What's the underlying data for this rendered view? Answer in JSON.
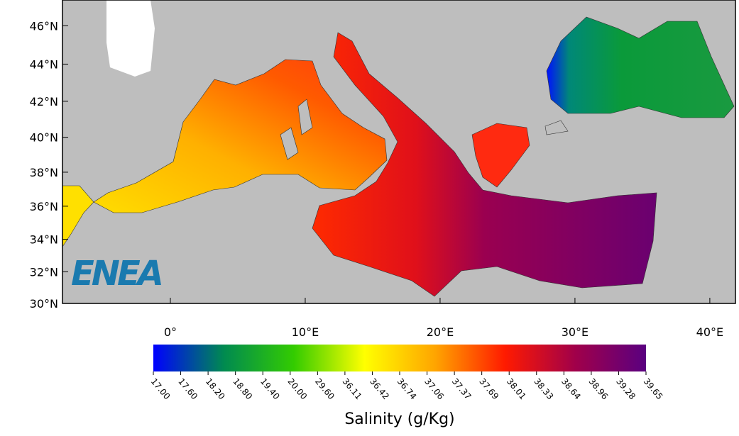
{
  "map": {
    "logo": "ENEA",
    "xlim": [
      -8,
      41.9
    ],
    "ylim": [
      30,
      47.3
    ],
    "xticks": [
      {
        "value": 0,
        "label": "0°"
      },
      {
        "value": 10,
        "label": "10°E"
      },
      {
        "value": 20,
        "label": "20°E"
      },
      {
        "value": 30,
        "label": "30°E"
      },
      {
        "value": 40,
        "label": "40°E"
      }
    ],
    "yticks": [
      {
        "value": 30,
        "label": "30°N"
      },
      {
        "value": 32,
        "label": "32°N"
      },
      {
        "value": 34,
        "label": "34°N"
      },
      {
        "value": 36,
        "label": "36°N"
      },
      {
        "value": 38,
        "label": "38°N"
      },
      {
        "value": 40,
        "label": "40°N"
      },
      {
        "value": 42,
        "label": "42°N"
      },
      {
        "value": 44,
        "label": "44°N"
      },
      {
        "value": 46,
        "label": "46°N"
      }
    ],
    "colorbar": {
      "label": "Salinity (g/Kg)",
      "colors": [
        "#0000ff",
        "#008a50",
        "#33cc00",
        "#ffff00",
        "#ffa500",
        "#ff1a00",
        "#a0004a",
        "#5a0080"
      ],
      "ticks": [
        {
          "value": 17,
          "label": "17.00"
        },
        {
          "value": 17.6,
          "label": "17.60"
        },
        {
          "value": 18.2,
          "label": "18.20"
        },
        {
          "value": 18.8,
          "label": "18.80"
        },
        {
          "value": 19.4,
          "label": "19.40"
        },
        {
          "value": 20,
          "label": "20.00"
        },
        {
          "value": 29.6,
          "label": "29.60"
        },
        36.11,
        36.42,
        36.74,
        37.06,
        37.37,
        37.69,
        38.01,
        38.33,
        38.64,
        38.96,
        39.28,
        39.65
      ]
    }
  }
}
